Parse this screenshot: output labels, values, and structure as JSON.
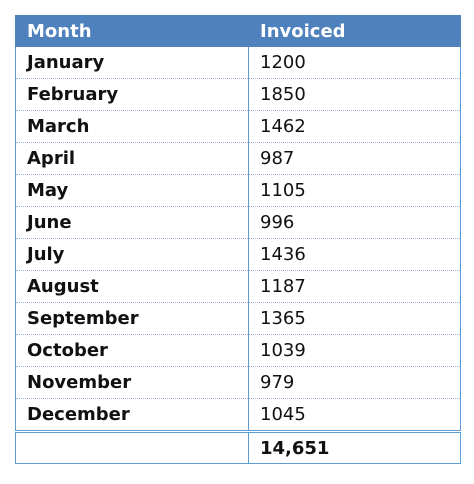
{
  "table": {
    "headers": {
      "month": "Month",
      "invoiced": "Invoiced"
    },
    "rows": [
      {
        "month": "January",
        "invoiced": "1200"
      },
      {
        "month": "February",
        "invoiced": "1850"
      },
      {
        "month": "March",
        "invoiced": "1462"
      },
      {
        "month": "April",
        "invoiced": "987"
      },
      {
        "month": "May",
        "invoiced": "1105"
      },
      {
        "month": "June",
        "invoiced": "996"
      },
      {
        "month": "July",
        "invoiced": "1436"
      },
      {
        "month": "August",
        "invoiced": "1187"
      },
      {
        "month": "September",
        "invoiced": "1365"
      },
      {
        "month": "October",
        "invoiced": "1039"
      },
      {
        "month": "November",
        "invoiced": "979"
      },
      {
        "month": "December",
        "invoiced": "1045"
      }
    ],
    "total": {
      "label": "",
      "invoiced": "14,651"
    }
  },
  "colors": {
    "header_bg": "#4f81bd",
    "header_text": "#ffffff",
    "border": "#5b9bd5"
  }
}
